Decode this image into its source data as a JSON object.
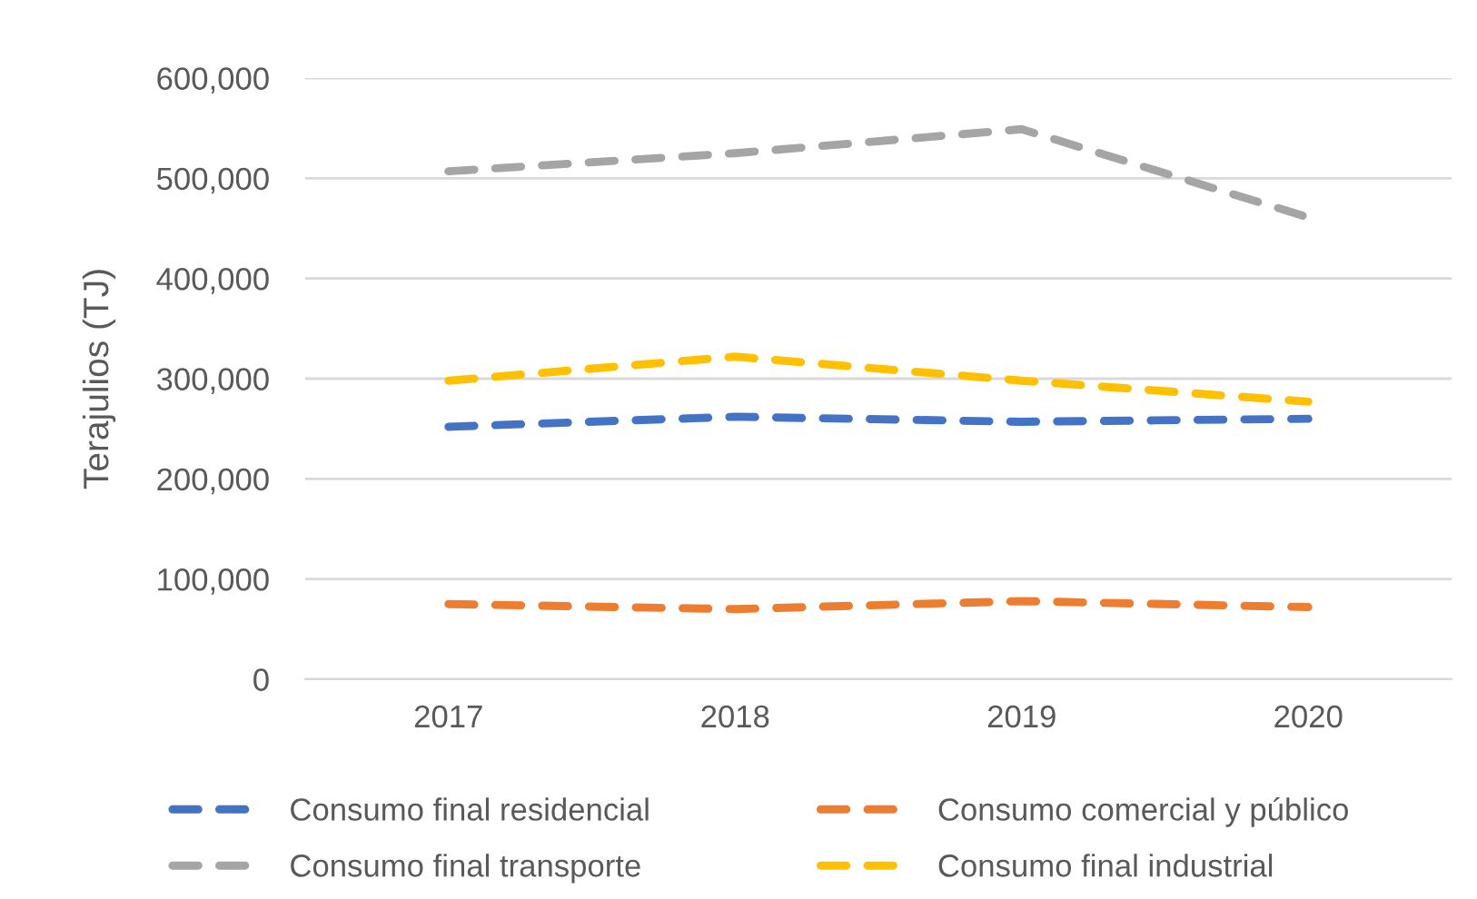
{
  "chart_data": {
    "type": "line",
    "ylabel": "Terajulios (TJ)",
    "categories": [
      "2017",
      "2018",
      "2019",
      "2020"
    ],
    "series": [
      {
        "name": "Consumo final residencial",
        "color": "#4472c4",
        "values": [
          252000,
          262000,
          257000,
          260000
        ]
      },
      {
        "name": "Consumo comercial y público",
        "color": "#ed7d31",
        "values": [
          75000,
          70000,
          78000,
          72000
        ]
      },
      {
        "name": "Consumo final transporte",
        "color": "#a5a5a5",
        "values": [
          507000,
          525000,
          549000,
          461000
        ]
      },
      {
        "name": "Consumo final industrial",
        "color": "#ffc000",
        "values": [
          298000,
          322000,
          298000,
          277000
        ]
      }
    ],
    "ylim": [
      0,
      600000
    ],
    "yticks": [
      {
        "value": 0,
        "label": "0"
      },
      {
        "value": 100000,
        "label": "100,000"
      },
      {
        "value": 200000,
        "label": "200,000"
      },
      {
        "value": 300000,
        "label": "300,000"
      },
      {
        "value": 400000,
        "label": "400,000"
      },
      {
        "value": 500000,
        "label": "500,000"
      },
      {
        "value": 600000,
        "label": "600,000"
      }
    ],
    "grid": "y",
    "legend": "bottom",
    "marker": "none",
    "line_style": "dashed"
  }
}
